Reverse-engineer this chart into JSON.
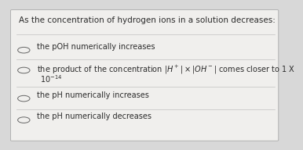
{
  "title": "As the concentration of hydrogen ions in a solution decreases:",
  "title_fontsize": 7.5,
  "options": [
    "the pOH numerically increases",
    "the pH numerically increases",
    "the pH numerically decreases"
  ],
  "option2_line1": "the product of the concentration $|H^+|\\times|OH^-|$ comes closer to 1 X",
  "option2_line2": "$10^{-14}$",
  "option_fontsize": 7.0,
  "bg_color": "#d8d8d8",
  "card_color": "#f0efed",
  "title_color": "#2b2b2b",
  "option_color": "#2b2b2b",
  "circle_color": "#666666",
  "divider_color": "#c0c0c0"
}
